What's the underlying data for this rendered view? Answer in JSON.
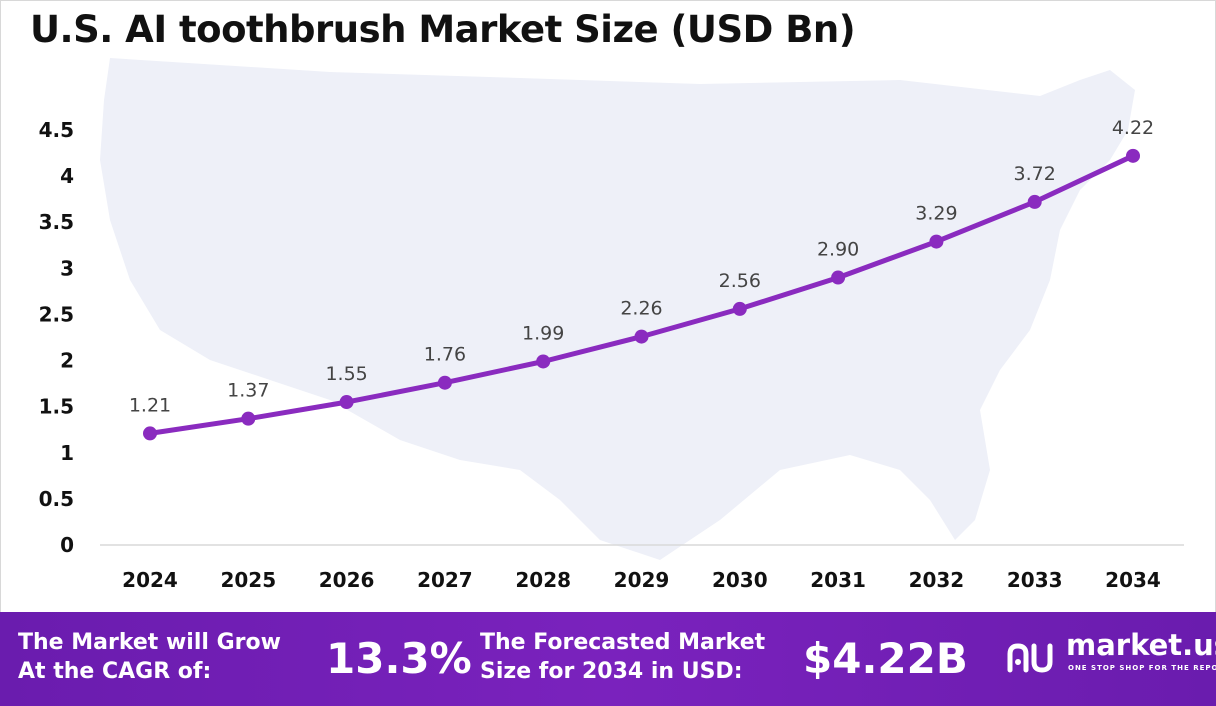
{
  "title": "U.S. AI toothbrush Market Size (USD Bn)",
  "colors": {
    "line": "#8a2bbf",
    "marker": "#8a2bbf",
    "map": "#eef0f8",
    "footer": "#6a1cae"
  },
  "chart_data": {
    "type": "line",
    "categories": [
      "2024",
      "2025",
      "2026",
      "2027",
      "2028",
      "2029",
      "2030",
      "2031",
      "2032",
      "2033",
      "2034"
    ],
    "values": [
      1.21,
      1.37,
      1.55,
      1.76,
      1.99,
      2.26,
      2.56,
      2.9,
      3.29,
      3.72,
      4.22
    ],
    "data_labels": [
      "1.21",
      "1.37",
      "1.55",
      "1.76",
      "1.99",
      "2.26",
      "2.56",
      "2.90",
      "3.29",
      "3.72",
      "4.22"
    ],
    "yticks": [
      "0",
      "0.5",
      "1",
      "1.5",
      "2",
      "2.5",
      "3",
      "3.5",
      "4",
      "4.5"
    ],
    "ylim": [
      0,
      4.5
    ],
    "grid": false,
    "title": "U.S. AI toothbrush Market Size (USD Bn)",
    "xlabel": "",
    "ylabel": ""
  },
  "footer": {
    "cagr_text_line1": "The Market will Grow",
    "cagr_text_line2": "At the CAGR of:",
    "cagr_value": "13.3%",
    "forecast_text_line1": "The Forecasted Market",
    "forecast_text_line2": "Size for 2034 in USD:",
    "forecast_value": "$4.22B",
    "brand_name": "market.us",
    "brand_tagline": "ONE STOP SHOP FOR THE REPORTS"
  }
}
